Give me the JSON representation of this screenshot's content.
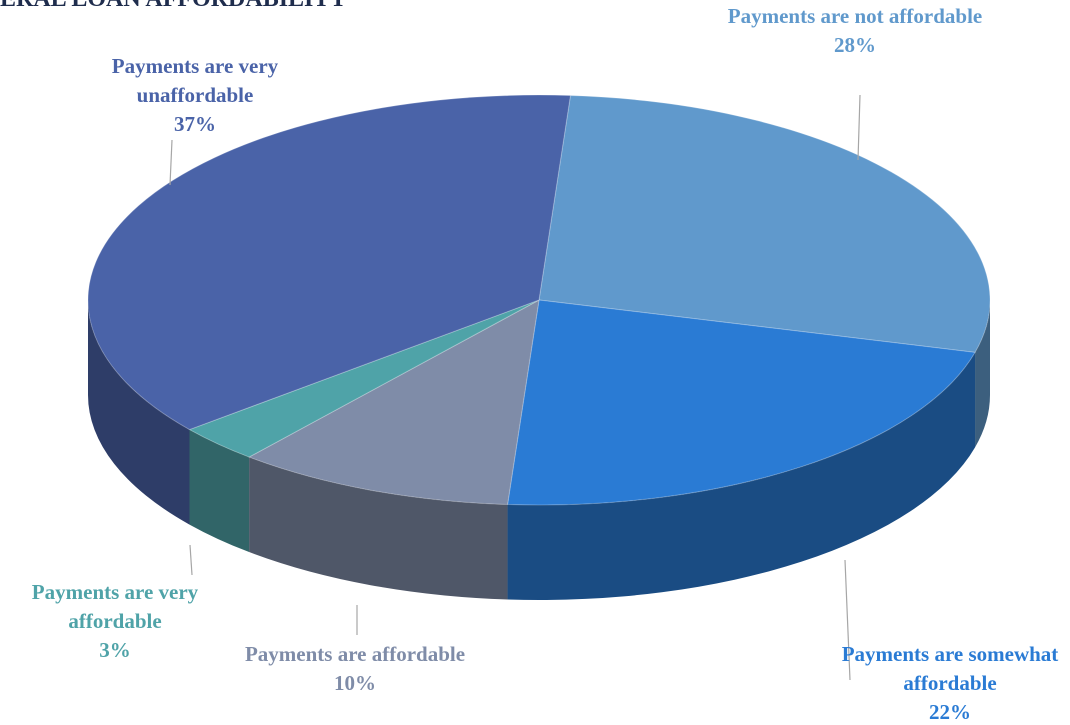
{
  "chart_data": {
    "type": "pie",
    "title": "ERAL LOAN AFFORDABILITY",
    "categories": [
      "Payments are not affordable",
      "Payments are somewhat affordable",
      "Payments are affordable",
      "Payments are very affordable",
      "Payments are very unaffordable"
    ],
    "values": [
      28,
      22,
      10,
      3,
      37
    ],
    "value_labels": [
      "28%",
      "22%",
      "10%",
      "3%",
      "37%"
    ],
    "colors": [
      "#6099cc",
      "#2a7bd4",
      "#7f8ca8",
      "#4fa3a8",
      "#4a63a8"
    ]
  }
}
